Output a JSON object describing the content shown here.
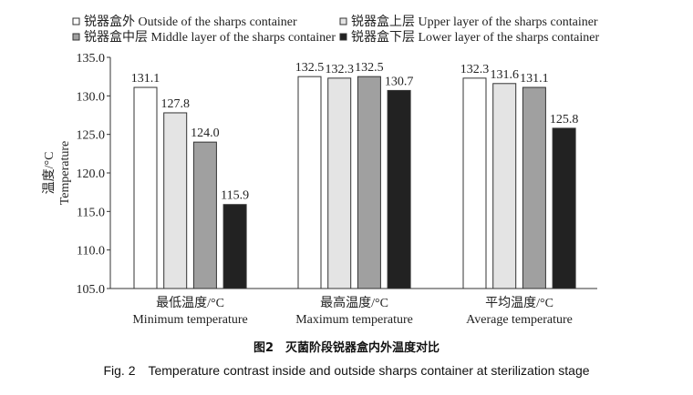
{
  "chart_data": {
    "type": "bar",
    "categories": [
      {
        "zh": "最低温度/°C",
        "en": "Minimum temperature"
      },
      {
        "zh": "最高温度/°C",
        "en": "Maximum temperature"
      },
      {
        "zh": "平均温度/°C",
        "en": "Average temperature"
      }
    ],
    "series": [
      {
        "name": "锐器盒外 Outside of the sharps container",
        "color": "#ffffff",
        "values": [
          131.1,
          132.5,
          132.3
        ]
      },
      {
        "name": "锐器盒上层 Upper layer of the sharps container",
        "color": "#e4e4e4",
        "values": [
          127.8,
          132.3,
          131.6
        ]
      },
      {
        "name": "锐器盒中层 Middle layer of the sharps container",
        "color": "#a0a0a0",
        "values": [
          124.0,
          132.5,
          131.1
        ]
      },
      {
        "name": "锐器盒下层 Lower layer of the sharps container",
        "color": "#222222",
        "values": [
          115.9,
          130.7,
          125.8
        ]
      }
    ],
    "value_labels": [
      [
        "131.1",
        "132.5",
        "132.3"
      ],
      [
        "127.8",
        "132.3",
        "131.6"
      ],
      [
        "124.0",
        "132.5",
        "131.1"
      ],
      [
        "115.9",
        "130.7",
        "125.8"
      ]
    ],
    "ylabel_zh": "温度/°C",
    "ylabel_en": "Temperature",
    "ylim": [
      105.0,
      135.0
    ],
    "yticks": [
      "105.0",
      "110.0",
      "115.0",
      "120.0",
      "125.0",
      "130.0",
      "135.0"
    ],
    "grid": false,
    "legend_placement": "top"
  },
  "caption": {
    "zh": "图2　灭菌阶段锐器盒内外温度对比",
    "en": "Fig. 2　Temperature contrast inside and outside sharps container at sterilization stage"
  }
}
